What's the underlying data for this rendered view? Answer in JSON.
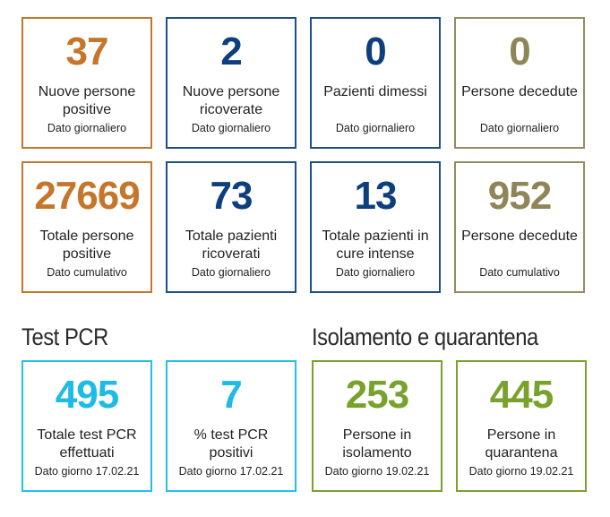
{
  "colors": {
    "orange": "#c5762b",
    "navy": "#0e3f7d",
    "olive": "#8f8558",
    "cyan": "#1dbbe5",
    "green": "#78a22c"
  },
  "row1": [
    {
      "value": "37",
      "label": "Nuove persone positive",
      "sub": "Dato giornaliero"
    },
    {
      "value": "2",
      "label": "Nuove persone ricoverate",
      "sub": "Dato giornaliero"
    },
    {
      "value": "0",
      "label": "Pazienti dimessi",
      "sub": "Dato giornaliero"
    },
    {
      "value": "0",
      "label": "Persone decedute",
      "sub": "Dato giornaliero"
    }
  ],
  "row2": [
    {
      "value": "27669",
      "label": "Totale persone positive",
      "sub": "Dato cumulativo"
    },
    {
      "value": "73",
      "label": "Totale pazienti ricoverati",
      "sub": "Dato giornaliero"
    },
    {
      "value": "13",
      "label": "Totale pazienti in cure intense",
      "sub": "Dato giornaliero"
    },
    {
      "value": "952",
      "label": "Persone decedute",
      "sub": "Dato cumulativo"
    }
  ],
  "sections": {
    "test_title": "Test PCR",
    "isolation_title": "Isolamento e quarantena"
  },
  "row3": [
    {
      "value": "495",
      "label": "Totale test PCR effettuati",
      "sub": "Dato giorno 17.02.21"
    },
    {
      "value": "7",
      "label": "% test PCR positivi",
      "sub": "Dato giorno 17.02.21"
    },
    {
      "value": "253",
      "label": "Persone in isolamento",
      "sub": "Dato giorno 19.02.21"
    },
    {
      "value": "445",
      "label": "Persone in quarantena",
      "sub": "Dato giorno 19.02.21"
    }
  ]
}
